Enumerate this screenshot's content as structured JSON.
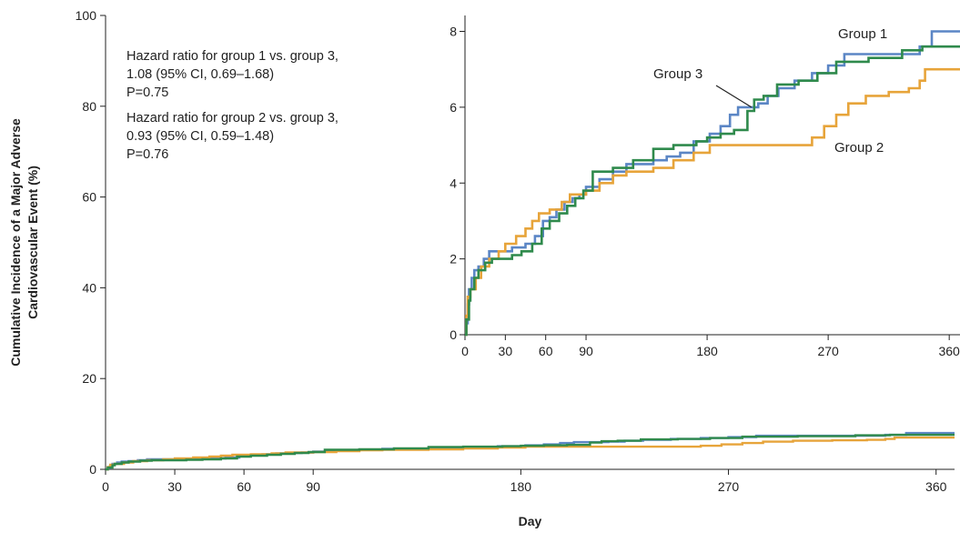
{
  "chart_data": [
    {
      "type": "line",
      "step": true,
      "xlabel": "Day",
      "ylabel_lines": [
        "Cumulative Incidence of a Major Adverse",
        "Cardiovascular Event (%)"
      ],
      "xlim": [
        0,
        368
      ],
      "ylim": [
        0,
        100
      ],
      "xticks": [
        0,
        30,
        60,
        90,
        180,
        270,
        360
      ],
      "yticks": [
        0,
        20,
        40,
        60,
        80,
        100
      ],
      "annotations": [
        [
          "Hazard ratio for group 1 vs. group 3,",
          "1.08 (95% CI, 0.69–1.68)",
          "P=0.75"
        ],
        [
          "Hazard ratio for group 2 vs. group 3,",
          "0.93  (95% CI, 0.59–1.48)",
          "P=0.76"
        ]
      ]
    },
    {
      "type": "line",
      "step": true,
      "inset": true,
      "xlim": [
        0,
        368
      ],
      "ylim": [
        0,
        8.3
      ],
      "xticks": [
        0,
        30,
        60,
        90,
        180,
        270,
        360
      ],
      "yticks": [
        0,
        2,
        4,
        6,
        8
      ],
      "series": [
        {
          "name": "Group 1",
          "color": "#5b86c5",
          "points": [
            [
              0,
              0
            ],
            [
              1,
              0.3
            ],
            [
              2,
              0.8
            ],
            [
              3,
              1.2
            ],
            [
              5,
              1.5
            ],
            [
              7,
              1.7
            ],
            [
              10,
              1.8
            ],
            [
              14,
              2.0
            ],
            [
              18,
              2.2
            ],
            [
              30,
              2.2
            ],
            [
              35,
              2.3
            ],
            [
              45,
              2.4
            ],
            [
              52,
              2.6
            ],
            [
              58,
              3.0
            ],
            [
              63,
              3.1
            ],
            [
              68,
              3.3
            ],
            [
              74,
              3.5
            ],
            [
              80,
              3.6
            ],
            [
              85,
              3.7
            ],
            [
              90,
              3.9
            ],
            [
              100,
              4.1
            ],
            [
              110,
              4.3
            ],
            [
              120,
              4.5
            ],
            [
              140,
              4.6
            ],
            [
              150,
              4.7
            ],
            [
              160,
              4.8
            ],
            [
              170,
              5.1
            ],
            [
              182,
              5.3
            ],
            [
              190,
              5.5
            ],
            [
              197,
              5.8
            ],
            [
              203,
              6.0
            ],
            [
              212,
              6.0
            ],
            [
              218,
              6.1
            ],
            [
              225,
              6.3
            ],
            [
              233,
              6.5
            ],
            [
              245,
              6.7
            ],
            [
              258,
              6.9
            ],
            [
              270,
              7.1
            ],
            [
              282,
              7.4
            ],
            [
              300,
              7.4
            ],
            [
              320,
              7.4
            ],
            [
              338,
              7.6
            ],
            [
              347,
              8.0
            ],
            [
              368,
              8.0
            ]
          ]
        },
        {
          "name": "Group 2",
          "color": "#e7a43a",
          "points": [
            [
              0,
              0
            ],
            [
              1,
              0.5
            ],
            [
              2,
              1.0
            ],
            [
              4,
              1.2
            ],
            [
              8,
              1.5
            ],
            [
              12,
              1.8
            ],
            [
              18,
              2.0
            ],
            [
              25,
              2.2
            ],
            [
              30,
              2.4
            ],
            [
              38,
              2.6
            ],
            [
              45,
              2.8
            ],
            [
              50,
              3.0
            ],
            [
              55,
              3.2
            ],
            [
              63,
              3.3
            ],
            [
              72,
              3.5
            ],
            [
              78,
              3.7
            ],
            [
              90,
              3.8
            ],
            [
              100,
              4.0
            ],
            [
              110,
              4.2
            ],
            [
              120,
              4.3
            ],
            [
              140,
              4.4
            ],
            [
              155,
              4.6
            ],
            [
              170,
              4.8
            ],
            [
              182,
              5.0
            ],
            [
              210,
              5.0
            ],
            [
              240,
              5.0
            ],
            [
              258,
              5.2
            ],
            [
              267,
              5.5
            ],
            [
              276,
              5.8
            ],
            [
              285,
              6.1
            ],
            [
              298,
              6.3
            ],
            [
              315,
              6.4
            ],
            [
              330,
              6.5
            ],
            [
              338,
              6.7
            ],
            [
              342,
              7.0
            ],
            [
              350,
              7.0
            ],
            [
              368,
              7.0
            ]
          ]
        },
        {
          "name": "Group 3",
          "color": "#2f8a4c",
          "points": [
            [
              0,
              0
            ],
            [
              1,
              0.4
            ],
            [
              3,
              0.9
            ],
            [
              4,
              1.2
            ],
            [
              7,
              1.5
            ],
            [
              10,
              1.7
            ],
            [
              15,
              1.9
            ],
            [
              20,
              2.0
            ],
            [
              35,
              2.1
            ],
            [
              42,
              2.2
            ],
            [
              50,
              2.4
            ],
            [
              57,
              2.8
            ],
            [
              63,
              3.0
            ],
            [
              70,
              3.2
            ],
            [
              76,
              3.4
            ],
            [
              82,
              3.6
            ],
            [
              88,
              3.8
            ],
            [
              95,
              4.3
            ],
            [
              110,
              4.4
            ],
            [
              125,
              4.6
            ],
            [
              140,
              4.9
            ],
            [
              155,
              5.0
            ],
            [
              172,
              5.1
            ],
            [
              180,
              5.2
            ],
            [
              190,
              5.3
            ],
            [
              200,
              5.4
            ],
            [
              210,
              5.9
            ],
            [
              215,
              6.2
            ],
            [
              222,
              6.3
            ],
            [
              232,
              6.6
            ],
            [
              248,
              6.7
            ],
            [
              262,
              6.9
            ],
            [
              276,
              7.2
            ],
            [
              300,
              7.3
            ],
            [
              315,
              7.3
            ],
            [
              325,
              7.5
            ],
            [
              340,
              7.6
            ],
            [
              368,
              7.6
            ]
          ]
        }
      ]
    }
  ]
}
